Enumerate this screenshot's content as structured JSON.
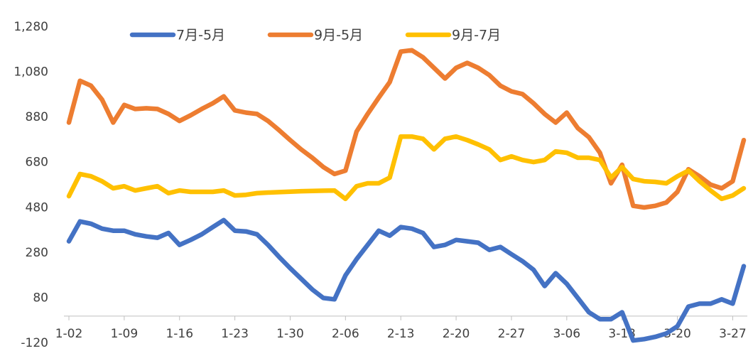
{
  "chart_data": {
    "type": "line",
    "categories": [
      "1-02",
      null,
      null,
      null,
      null,
      "1-09",
      null,
      null,
      null,
      null,
      "1-16",
      null,
      null,
      null,
      null,
      "1-23",
      null,
      null,
      null,
      null,
      "1-30",
      null,
      null,
      null,
      null,
      "2-06",
      null,
      null,
      null,
      null,
      "2-13",
      null,
      null,
      null,
      null,
      "2-20",
      null,
      null,
      null,
      null,
      "2-27",
      null,
      null,
      null,
      null,
      "3-06",
      null,
      null,
      null,
      null,
      "3-13",
      null,
      null,
      null,
      null,
      "3-20",
      null,
      null,
      null,
      null,
      "3-27",
      null
    ],
    "series": [
      {
        "name": "7月-5月",
        "color": "#4472c4",
        "values": [
          331,
          419,
          409,
          387,
          378,
          378,
          362,
          353,
          347,
          368,
          315,
          337,
          362,
          394,
          425,
          378,
          375,
          362,
          315,
          262,
          212,
          165,
          118,
          80,
          74,
          180,
          252,
          315,
          378,
          356,
          394,
          387,
          368,
          306,
          315,
          337,
          331,
          325,
          293,
          306,
          274,
          243,
          205,
          133,
          190,
          143,
          80,
          17,
          -14,
          -14,
          17,
          -108,
          -102,
          -92,
          -77,
          -45,
          42,
          55,
          55,
          74,
          55,
          221
        ]
      },
      {
        "name": "9月-5月",
        "color": "#ed7d31",
        "values": [
          857,
          1042,
          1020,
          958,
          857,
          935,
          917,
          920,
          917,
          895,
          864,
          889,
          917,
          942,
          973,
          911,
          901,
          895,
          864,
          823,
          779,
          738,
          701,
          660,
          629,
          644,
          817,
          895,
          967,
          1036,
          1171,
          1177,
          1146,
          1099,
          1052,
          1099,
          1121,
          1099,
          1067,
          1020,
          995,
          983,
          942,
          895,
          857,
          901,
          832,
          792,
          723,
          588,
          670,
          488,
          481,
          488,
          503,
          550,
          650,
          619,
          582,
          566,
          597,
          779
        ]
      },
      {
        "name": "9月-7月",
        "color": "#ffc000",
        "values": [
          531,
          629,
          619,
          597,
          566,
          575,
          556,
          566,
          575,
          544,
          556,
          550,
          550,
          550,
          556,
          534,
          537,
          544,
          547,
          549,
          551,
          553,
          554,
          555,
          556,
          519,
          575,
          588,
          588,
          613,
          795,
          795,
          785,
          738,
          785,
          795,
          779,
          760,
          738,
          691,
          707,
          691,
          682,
          691,
          729,
          723,
          701,
          701,
          691,
          613,
          660,
          607,
          597,
          594,
          588,
          619,
          644,
          597,
          556,
          519,
          534,
          566
        ]
      }
    ],
    "ylim": [
      -120,
      1280
    ],
    "yticks": [
      -120,
      80,
      280,
      480,
      680,
      880,
      {
        "value": 1080,
        "label": "1,080"
      },
      {
        "value": 1280,
        "label": "1,280"
      }
    ],
    "legend": "top"
  }
}
